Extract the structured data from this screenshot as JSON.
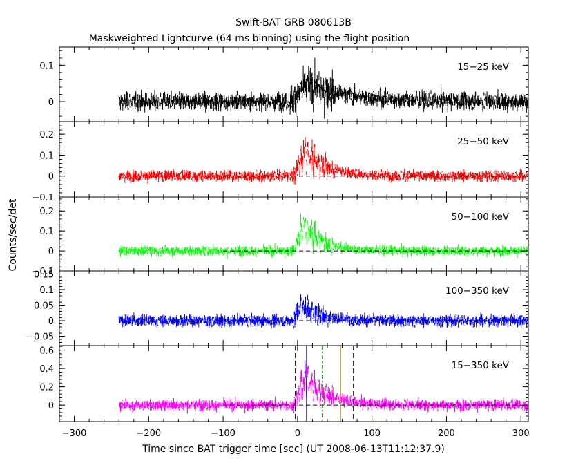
{
  "chart_data": {
    "type": "line",
    "title": "Swift-BAT GRB 080613B",
    "subtitle": "Maskweighted Lightcurve (64 ms binning) using the flight position",
    "xlabel": "Time since BAT trigger time [sec] (UT 2008-06-13T11:12:37.9)",
    "ylabel": "Counts/sec/det",
    "xlim": [
      -320,
      310
    ],
    "x_ticks": [
      -300,
      -200,
      -100,
      0,
      100,
      200,
      300
    ],
    "data_range": [
      -240,
      310
    ],
    "panels": [
      {
        "name": "15-25 keV",
        "label": "15−25 keV",
        "color": "#000000",
        "ylim": [
          -0.055,
          0.15
        ],
        "y_ticks": [
          0,
          0.1
        ],
        "y_tick_labels": [
          "0",
          "0.1"
        ],
        "noise_sigma": 0.02,
        "pulse": {
          "peak": 0.045,
          "start": -10,
          "peak_time": 12,
          "decay": 60
        },
        "dashed_zero": false
      },
      {
        "name": "25-50 keV",
        "label": "25−50 keV",
        "color": "#ff0000",
        "ylim": [
          -0.1,
          0.26
        ],
        "y_ticks": [
          -0.1,
          0,
          0.1,
          0.2
        ],
        "y_tick_labels": [
          "−0.1",
          "0",
          "0.1",
          "0.2"
        ],
        "noise_sigma": 0.022,
        "pulse": {
          "peak": 0.12,
          "start": -5,
          "peak_time": 10,
          "decay": 30
        },
        "dashed_zero": true
      },
      {
        "name": "50-100 keV",
        "label": "50−100 keV",
        "color": "#00ff00",
        "ylim": [
          -0.1,
          0.27
        ],
        "y_ticks": [
          -0.1,
          0,
          0.1,
          0.2
        ],
        "y_tick_labels": [
          "−0.1",
          "0",
          "0.1",
          "0.2"
        ],
        "noise_sigma": 0.02,
        "pulse": {
          "peak": 0.13,
          "start": -5,
          "peak_time": 8,
          "decay": 25
        },
        "dashed_zero": true
      },
      {
        "name": "100-350 keV",
        "label": "100−350 keV",
        "color": "#0000ff",
        "ylim": [
          -0.08,
          0.16
        ],
        "y_ticks": [
          -0.05,
          0,
          0.05,
          0.1,
          0.15
        ],
        "y_tick_labels": [
          "−0.05",
          "0",
          "0.05",
          "0.1",
          "0.15"
        ],
        "noise_sigma": 0.016,
        "pulse": {
          "peak": 0.05,
          "start": -5,
          "peak_time": 5,
          "decay": 25
        },
        "dashed_zero": true
      },
      {
        "name": "15-350 keV",
        "label": "15−350 keV",
        "color": "#ff00ff",
        "ylim": [
          -0.18,
          0.65
        ],
        "y_ticks": [
          0,
          0.2,
          0.4,
          0.6
        ],
        "y_tick_labels": [
          "0",
          "0.2",
          "0.4",
          "0.6"
        ],
        "noise_sigma": 0.05,
        "pulse": {
          "peak": 0.3,
          "start": -5,
          "peak_time": 10,
          "decay": 30
        },
        "dashed_zero": true,
        "markers": [
          {
            "x": -3,
            "color": "#000000",
            "style": "dashed"
          },
          {
            "x": 12,
            "color": "#0000ff",
            "style": "solid"
          },
          {
            "x": 33,
            "color": "#00cc00",
            "style": "dashdot"
          },
          {
            "x": 58,
            "color": "#ff8c00",
            "style": "solid"
          },
          {
            "x": 75,
            "color": "#000000",
            "style": "dashed"
          }
        ]
      }
    ]
  }
}
